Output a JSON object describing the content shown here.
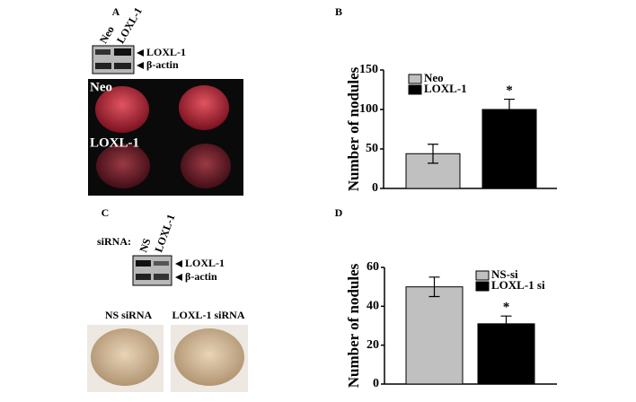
{
  "panels": {
    "A": {
      "label": "A",
      "lanes": [
        "Neo",
        "LOXL-1"
      ],
      "bands": [
        "LOXL-1",
        "β-actin"
      ],
      "image_labels": [
        "Neo",
        "LOXL-1"
      ]
    },
    "C": {
      "label": "C",
      "prefix": "siRNA:",
      "lanes": [
        "NS",
        "LOXL-1"
      ],
      "bands": [
        "LOXL-1",
        "β-actin"
      ],
      "image_labels": [
        "NS siRNA",
        "LOXL-1 siRNA"
      ]
    }
  },
  "chart_data": [
    {
      "type": "bar",
      "panel_label": "B",
      "ylabel": "Number of nodules",
      "ylim": [
        0,
        150
      ],
      "yticks": [
        0,
        50,
        100,
        150
      ],
      "series": [
        {
          "name": "Neo",
          "color": "#c0c0c0",
          "values": [
            44
          ],
          "errors": [
            12
          ]
        },
        {
          "name": "LOXL-1",
          "color": "#000000",
          "values": [
            100
          ],
          "errors": [
            13
          ],
          "annotation": "*"
        }
      ]
    },
    {
      "type": "bar",
      "panel_label": "D",
      "ylabel": "Number of nodules",
      "ylim": [
        0,
        60
      ],
      "yticks": [
        0,
        20,
        40,
        60
      ],
      "series": [
        {
          "name": "NS-si",
          "color": "#c0c0c0",
          "values": [
            50
          ],
          "errors": [
            5
          ]
        },
        {
          "name": "LOXL-1 si",
          "color": "#000000",
          "values": [
            31
          ],
          "errors": [
            4
          ],
          "annotation": "*"
        }
      ]
    }
  ]
}
